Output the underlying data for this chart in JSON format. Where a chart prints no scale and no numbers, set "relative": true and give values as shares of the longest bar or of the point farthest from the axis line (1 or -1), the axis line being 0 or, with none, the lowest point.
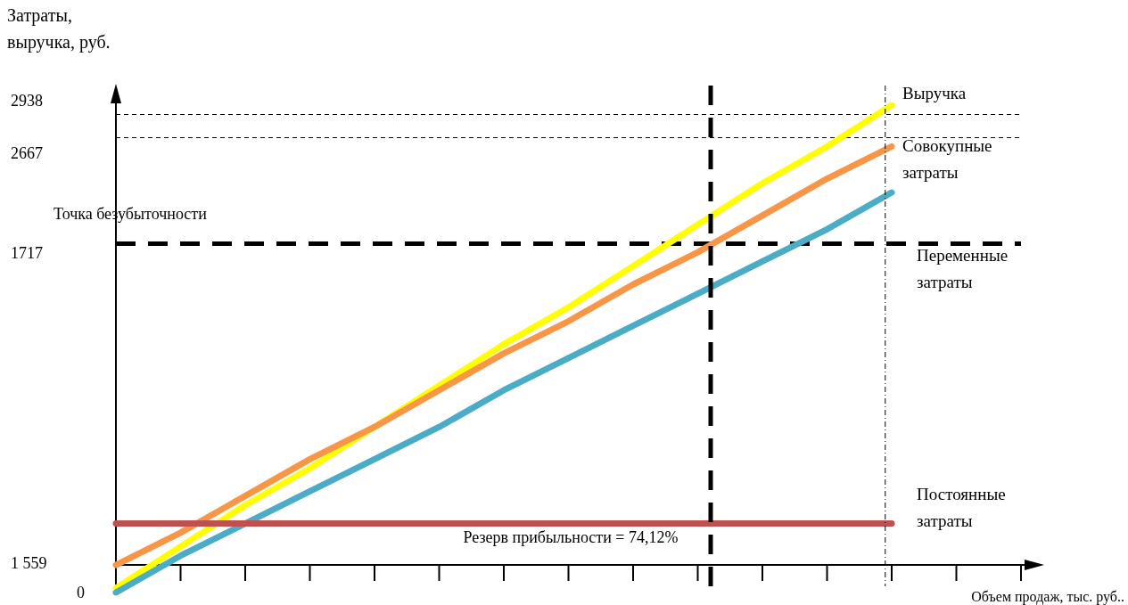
{
  "chart_data": {
    "type": "line",
    "ylabel": "Затраты, выручка, руб.",
    "xlabel": "Объем продаж, тыс. руб..",
    "relative": true,
    "marker": "none",
    "line_style": "solid",
    "legend": false,
    "grid": false,
    "categories": [
      null,
      null,
      null,
      null,
      null,
      null,
      null,
      null,
      null,
      null,
      null,
      null,
      null,
      null,
      null
    ],
    "series": [
      {
        "name": "Выручка",
        "color": "#ffff00",
        "values": [
          -0.05,
          0.04,
          0.13,
          0.21,
          0.3,
          0.39,
          0.48,
          0.56,
          0.65,
          0.74,
          0.83,
          0.91,
          1,
          null,
          null
        ]
      },
      {
        "name": "Совокупные затраты",
        "color": "#f79646",
        "values": [
          0,
          0.07,
          0.15,
          0.23,
          0.3,
          0.38,
          0.46,
          0.53,
          0.61,
          0.68,
          0.76,
          0.84,
          0.91,
          null,
          null
        ]
      },
      {
        "name": "Переменные затраты",
        "color": "#4bacc6",
        "values": [
          -0.06,
          0.02,
          0.09,
          0.16,
          0.23,
          0.3,
          0.38,
          0.45,
          0.52,
          0.59,
          0.66,
          0.73,
          0.81,
          null,
          null
        ]
      },
      {
        "name": "Постоянные затраты",
        "color": "#c0504d",
        "values": [
          0.09,
          0.09,
          0.09,
          0.09,
          0.09,
          0.09,
          0.09,
          0.09,
          0.09,
          0.09,
          0.09,
          0.09,
          0.09,
          null,
          null
        ]
      }
    ],
    "ref_lines": [
      {
        "axis": "y",
        "value": 0.98,
        "label": null,
        "color": "#000000",
        "line_style": "dotted"
      },
      {
        "axis": "y",
        "value": 0.93,
        "label": null,
        "color": "#000000",
        "line_style": "dotted"
      },
      {
        "axis": "y",
        "value": 0.7,
        "label": null,
        "color": "#000000",
        "line_style": "dashed"
      }
    ],
    "annotations": [
      "2938",
      "2667",
      "Точка безубыточности",
      "1717",
      "1 559",
      "0",
      "Резерв прибыльности = 74,12%"
    ]
  }
}
